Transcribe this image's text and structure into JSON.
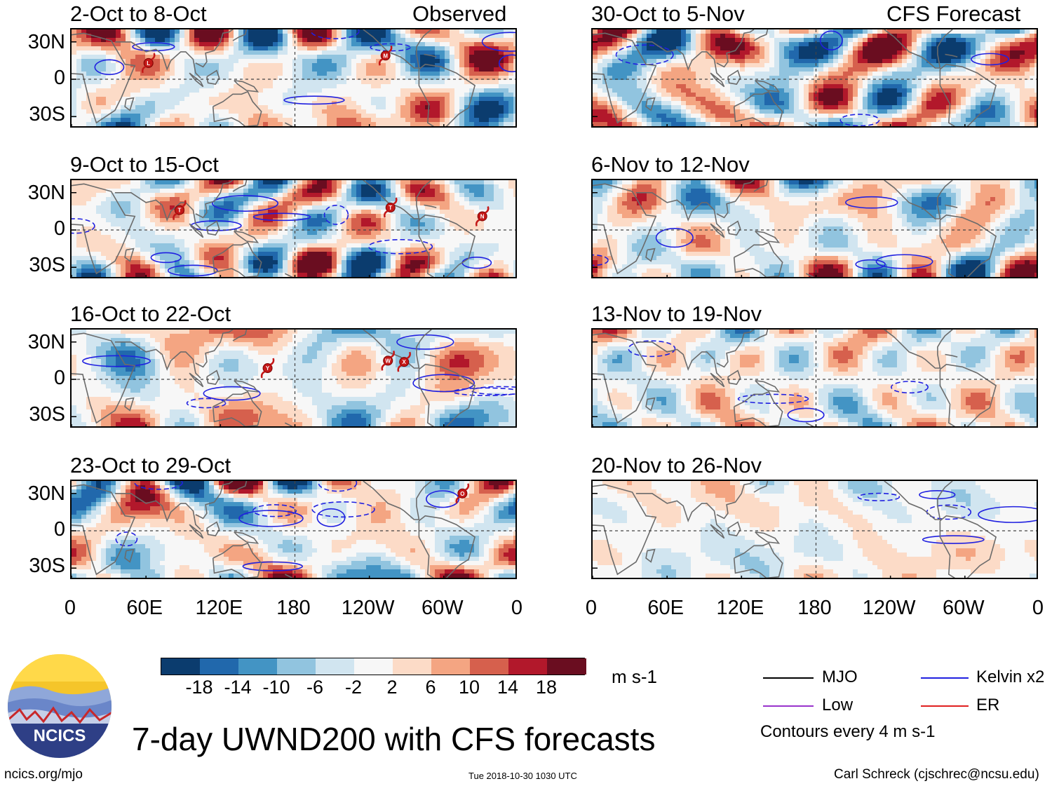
{
  "chart_data": {
    "type": "heatmap",
    "title": "7-day UWND200 with CFS forecasts",
    "variable": "200 hPa zonal wind anomaly (7-day mean)",
    "units": "m s-1",
    "column_headers": {
      "left": "Observed",
      "right": "CFS Forecast"
    },
    "x_ticks": [
      "0",
      "60E",
      "120E",
      "180",
      "120W",
      "60W",
      "0"
    ],
    "x_range_deg": [
      0,
      360
    ],
    "y_ticks": [
      "30N",
      "0",
      "30S"
    ],
    "y_range_deg": [
      -40,
      40
    ],
    "panels": [
      {
        "column": "left",
        "label": "2-Oct to 8-Oct",
        "storms": [
          {
            "letter": "L",
            "lon": 62,
            "lat": 13
          },
          {
            "letter": "M",
            "lon": 253,
            "lat": 19
          }
        ]
      },
      {
        "column": "left",
        "label": "9-Oct to 15-Oct",
        "storms": [
          {
            "letter": "T",
            "lon": 87,
            "lat": 16
          },
          {
            "letter": "T",
            "lon": 257,
            "lat": 18
          },
          {
            "letter": "N",
            "lon": 331,
            "lat": 11
          }
        ]
      },
      {
        "column": "left",
        "label": "16-Oct to 22-Oct",
        "storms": [
          {
            "letter": "Y",
            "lon": 158,
            "lat": 9
          },
          {
            "letter": "W",
            "lon": 255,
            "lat": 15
          },
          {
            "letter": "X",
            "lon": 268,
            "lat": 14
          }
        ]
      },
      {
        "column": "left",
        "label": "23-Oct to 29-Oct",
        "storms": [
          {
            "letter": "O",
            "lon": 315,
            "lat": 30
          }
        ]
      },
      {
        "column": "right",
        "label": "30-Oct to 5-Nov",
        "storms": []
      },
      {
        "column": "right",
        "label": "6-Nov to 12-Nov",
        "storms": []
      },
      {
        "column": "right",
        "label": "13-Nov to 19-Nov",
        "storms": []
      },
      {
        "column": "right",
        "label": "20-Nov to 26-Nov",
        "storms": []
      }
    ],
    "colorbar": {
      "ticks": [
        "-18",
        "-14",
        "-10",
        "-6",
        "-2",
        "2",
        "6",
        "10",
        "14",
        "18"
      ],
      "colors": [
        "#0b3c6e",
        "#2168ac",
        "#4394c4",
        "#91c4df",
        "#d1e5f0",
        "#f7f7f7",
        "#fcdbc7",
        "#f4a582",
        "#d6604d",
        "#b2182b",
        "#6a0d20"
      ],
      "units_label": "m s-1"
    },
    "legend": [
      {
        "label": "MJO",
        "color": "#000000"
      },
      {
        "label": "Kelvin x2",
        "color": "#2020e0"
      },
      {
        "label": "Low",
        "color": "#9933cc"
      },
      {
        "label": "ER",
        "color": "#e02020"
      }
    ],
    "contour_note": "Contours every 4 m s-1"
  },
  "footer": {
    "site": "ncics.org/mjo",
    "timestamp": "Tue 2018-10-30 1030 UTC",
    "author": "Carl Schreck (cjschrec@ncsu.edu)",
    "logo_text": "NCICS"
  }
}
